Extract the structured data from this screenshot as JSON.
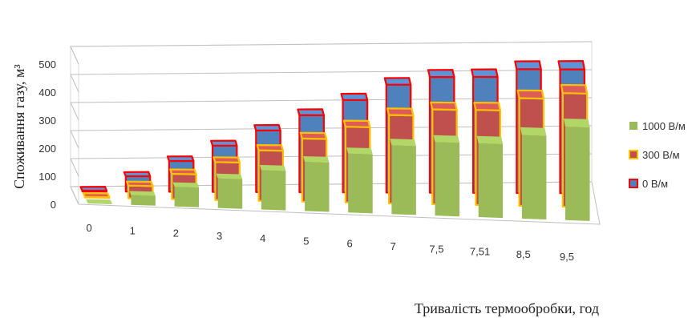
{
  "chart_data": {
    "type": "bar",
    "variant": "3d-clustered-depth",
    "xlabel": "Тривалість термообробки, год",
    "ylabel": "Споживання газу,  м³",
    "ylim": [
      0,
      500
    ],
    "yticks": [
      "0",
      "100",
      "200",
      "300",
      "400",
      "500"
    ],
    "categories": [
      "0",
      "1",
      "2",
      "3",
      "4",
      "5",
      "6",
      "7",
      "7,5",
      "7,51",
      "8,5",
      "9,5"
    ],
    "grid": true,
    "legend_position": "right",
    "series": [
      {
        "name": "1000 В/м",
        "color": "#9bbb59",
        "values": [
          2,
          35,
          70,
          105,
          140,
          175,
          210,
          245,
          262,
          263,
          298,
          333
        ]
      },
      {
        "name": "300 В/м",
        "color": "#c0504d",
        "border": "#ffc000",
        "values": [
          2,
          45,
          90,
          135,
          180,
          225,
          270,
          315,
          338,
          339,
          384,
          405
        ]
      },
      {
        "name": "0 В/м",
        "color": "#4f81bd",
        "border": "#ff0000",
        "values": [
          3,
          55,
          110,
          165,
          220,
          275,
          330,
          385,
          413,
          414,
          442,
          442
        ]
      }
    ]
  }
}
